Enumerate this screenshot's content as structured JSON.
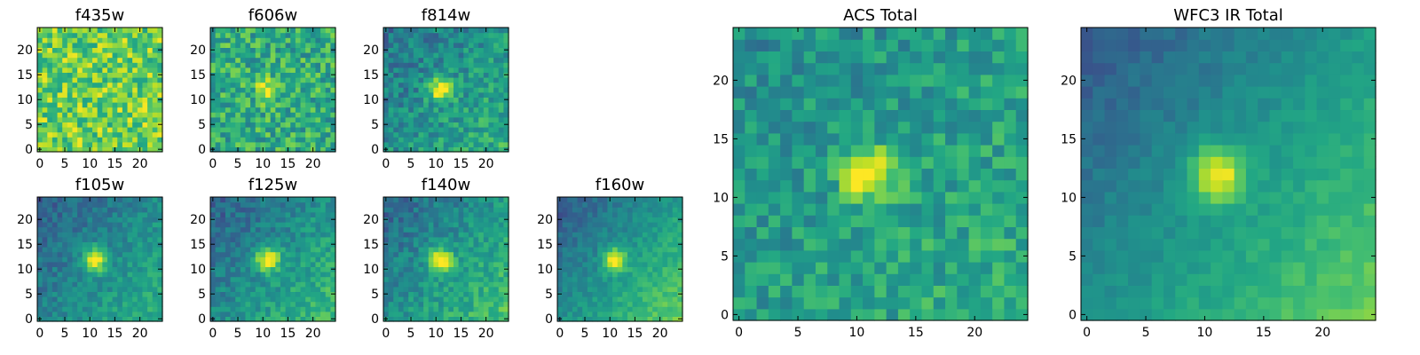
{
  "chart_data": [
    {
      "type": "heatmap",
      "title": "f435w",
      "grid_size": 25,
      "colormap": "viridis",
      "xlim": [
        0,
        24
      ],
      "ylim": [
        0,
        24
      ],
      "xticks": [
        0,
        5,
        10,
        15,
        20
      ],
      "yticks": [
        0,
        5,
        10,
        15,
        20
      ],
      "source": {
        "kind": "blob",
        "center": [
          11,
          12
        ],
        "amplitude": 0.0,
        "noise": 0.42,
        "base": 0.78,
        "seed": 11
      }
    },
    {
      "type": "heatmap",
      "title": "f606w",
      "grid_size": 25,
      "colormap": "viridis",
      "xlim": [
        0,
        24
      ],
      "ylim": [
        0,
        24
      ],
      "xticks": [
        0,
        5,
        10,
        15,
        20
      ],
      "yticks": [
        0,
        5,
        10,
        15,
        20
      ],
      "source": {
        "kind": "blob",
        "center": [
          11,
          12
        ],
        "amplitude": 0.35,
        "noise": 0.4,
        "base": 0.62,
        "seed": 23
      }
    },
    {
      "type": "heatmap",
      "title": "f814w",
      "grid_size": 25,
      "colormap": "viridis",
      "xlim": [
        0,
        24
      ],
      "ylim": [
        0,
        24
      ],
      "xticks": [
        0,
        5,
        10,
        15,
        20
      ],
      "yticks": [
        0,
        5,
        10,
        15,
        20
      ],
      "source": {
        "kind": "blob",
        "center": [
          11,
          12
        ],
        "amplitude": 0.55,
        "noise": 0.3,
        "base": 0.5,
        "gradient": 0.25,
        "seed": 37
      }
    },
    {
      "type": "heatmap",
      "title": "f105w",
      "grid_size": 25,
      "colormap": "viridis",
      "xlim": [
        0,
        24
      ],
      "ylim": [
        0,
        24
      ],
      "xticks": [
        0,
        5,
        10,
        15,
        20
      ],
      "yticks": [
        0,
        5,
        10,
        15,
        20
      ],
      "source": {
        "kind": "blob",
        "center": [
          11,
          12
        ],
        "amplitude": 0.6,
        "noise": 0.2,
        "base": 0.45,
        "gradient": 0.35,
        "seed": 41
      }
    },
    {
      "type": "heatmap",
      "title": "f125w",
      "grid_size": 25,
      "colormap": "viridis",
      "xlim": [
        0,
        24
      ],
      "ylim": [
        0,
        24
      ],
      "xticks": [
        0,
        5,
        10,
        15,
        20
      ],
      "yticks": [
        0,
        5,
        10,
        15,
        20
      ],
      "source": {
        "kind": "blob",
        "center": [
          11,
          12
        ],
        "amplitude": 0.55,
        "noise": 0.22,
        "base": 0.48,
        "gradient": 0.4,
        "seed": 53
      }
    },
    {
      "type": "heatmap",
      "title": "f140w",
      "grid_size": 25,
      "colormap": "viridis",
      "xlim": [
        0,
        24
      ],
      "ylim": [
        0,
        24
      ],
      "xticks": [
        0,
        5,
        10,
        15,
        20
      ],
      "yticks": [
        0,
        5,
        10,
        15,
        20
      ],
      "source": {
        "kind": "blob",
        "center": [
          11,
          12
        ],
        "amplitude": 0.55,
        "noise": 0.22,
        "base": 0.5,
        "gradient": 0.4,
        "seed": 67
      }
    },
    {
      "type": "heatmap",
      "title": "f160w",
      "grid_size": 25,
      "colormap": "viridis",
      "xlim": [
        0,
        24
      ],
      "ylim": [
        0,
        24
      ],
      "xticks": [
        0,
        5,
        10,
        15,
        20
      ],
      "yticks": [
        0,
        5,
        10,
        15,
        20
      ],
      "source": {
        "kind": "blob",
        "center": [
          11,
          12
        ],
        "amplitude": 0.5,
        "noise": 0.15,
        "base": 0.5,
        "gradient": 0.5,
        "seed": 79
      }
    },
    {
      "type": "heatmap",
      "title": "ACS Total",
      "grid_size": 25,
      "colormap": "viridis",
      "xlim": [
        0,
        24
      ],
      "ylim": [
        0,
        24
      ],
      "xticks": [
        0,
        5,
        10,
        15,
        20
      ],
      "yticks": [
        0,
        5,
        10,
        15,
        20
      ],
      "source": {
        "kind": "blob",
        "center": [
          11,
          12
        ],
        "amplitude": 0.5,
        "noise": 0.28,
        "base": 0.55,
        "gradient": 0.15,
        "seed": 97
      }
    },
    {
      "type": "heatmap",
      "title": "WFC3 IR Total",
      "grid_size": 25,
      "colormap": "viridis",
      "xlim": [
        0,
        24
      ],
      "ylim": [
        0,
        24
      ],
      "xticks": [
        0,
        5,
        10,
        15,
        20
      ],
      "yticks": [
        0,
        5,
        10,
        15,
        20
      ],
      "source": {
        "kind": "blob",
        "center": [
          11,
          12
        ],
        "amplitude": 0.5,
        "noise": 0.1,
        "base": 0.5,
        "gradient": 0.5,
        "seed": 113
      }
    }
  ]
}
